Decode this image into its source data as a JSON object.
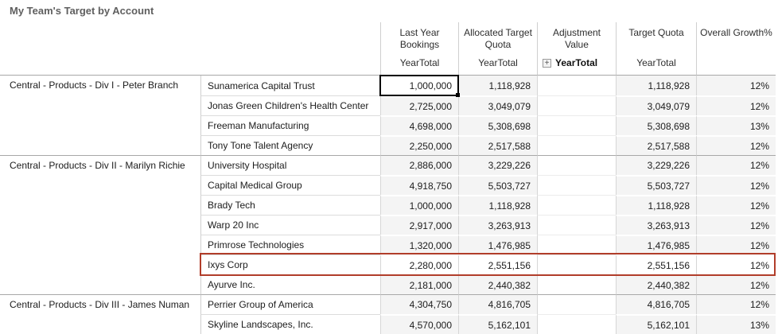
{
  "title": "My Team's Target by Account",
  "colors": {
    "highlight_border": "#b13d2a",
    "selection_border": "#000000",
    "cell_bg": "#f4f4f4",
    "grid_line": "#cfcfcf",
    "group_line": "#a8a8a8",
    "title_text": "#5f5f5f"
  },
  "icons": {
    "expand": "+"
  },
  "columns": [
    {
      "id": "last_year_bookings",
      "label": "Last Year Bookings",
      "sub": "YearTotal",
      "expandable": false
    },
    {
      "id": "allocated_target_quota",
      "label": "Allocated Target Quota",
      "sub": "YearTotal",
      "expandable": false
    },
    {
      "id": "adjustment_value",
      "label": "Adjustment Value",
      "sub": "YearTotal",
      "expandable": true
    },
    {
      "id": "target_quota",
      "label": "Target Quota",
      "sub": "YearTotal",
      "expandable": false
    },
    {
      "id": "overall_growth",
      "label": "Overall Growth%",
      "sub": "",
      "expandable": false
    }
  ],
  "groups": [
    {
      "label": "Central - Products - Div I - Peter Branch",
      "rows": [
        {
          "account": "Sunamerica Capital Trust",
          "last_year_bookings": "1,000,000",
          "allocated_target_quota": "1,118,928",
          "adjustment_value": "",
          "target_quota": "1,118,928",
          "overall_growth": "12%",
          "selected_column": "last_year_bookings"
        },
        {
          "account": "Jonas Green Children's Health Center",
          "last_year_bookings": "2,725,000",
          "allocated_target_quota": "3,049,079",
          "adjustment_value": "",
          "target_quota": "3,049,079",
          "overall_growth": "12%"
        },
        {
          "account": "Freeman Manufacturing",
          "last_year_bookings": "4,698,000",
          "allocated_target_quota": "5,308,698",
          "adjustment_value": "",
          "target_quota": "5,308,698",
          "overall_growth": "13%"
        },
        {
          "account": "Tony Tone Talent Agency",
          "last_year_bookings": "2,250,000",
          "allocated_target_quota": "2,517,588",
          "adjustment_value": "",
          "target_quota": "2,517,588",
          "overall_growth": "12%"
        }
      ]
    },
    {
      "label": "Central - Products - Div II - Marilyn Richie",
      "rows": [
        {
          "account": "University Hospital",
          "last_year_bookings": "2,886,000",
          "allocated_target_quota": "3,229,226",
          "adjustment_value": "",
          "target_quota": "3,229,226",
          "overall_growth": "12%"
        },
        {
          "account": "Capital Medical Group",
          "last_year_bookings": "4,918,750",
          "allocated_target_quota": "5,503,727",
          "adjustment_value": "",
          "target_quota": "5,503,727",
          "overall_growth": "12%"
        },
        {
          "account": "Brady Tech",
          "last_year_bookings": "1,000,000",
          "allocated_target_quota": "1,118,928",
          "adjustment_value": "",
          "target_quota": "1,118,928",
          "overall_growth": "12%"
        },
        {
          "account": "Warp 20 Inc",
          "last_year_bookings": "2,917,000",
          "allocated_target_quota": "3,263,913",
          "adjustment_value": "",
          "target_quota": "3,263,913",
          "overall_growth": "12%"
        },
        {
          "account": "Primrose Technologies",
          "last_year_bookings": "1,320,000",
          "allocated_target_quota": "1,476,985",
          "adjustment_value": "",
          "target_quota": "1,476,985",
          "overall_growth": "12%"
        },
        {
          "account": "Ixys Corp",
          "last_year_bookings": "2,280,000",
          "allocated_target_quota": "2,551,156",
          "adjustment_value": "",
          "target_quota": "2,551,156",
          "overall_growth": "12%",
          "highlighted": true
        },
        {
          "account": "Ayurve Inc.",
          "last_year_bookings": "2,181,000",
          "allocated_target_quota": "2,440,382",
          "adjustment_value": "",
          "target_quota": "2,440,382",
          "overall_growth": "12%"
        }
      ]
    },
    {
      "label": "Central - Products - Div III - James Numan",
      "rows": [
        {
          "account": "Perrier Group of America",
          "last_year_bookings": "4,304,750",
          "allocated_target_quota": "4,816,705",
          "adjustment_value": "",
          "target_quota": "4,816,705",
          "overall_growth": "12%"
        },
        {
          "account": "Skyline Landscapes, Inc.",
          "last_year_bookings": "4,570,000",
          "allocated_target_quota": "5,162,101",
          "adjustment_value": "",
          "target_quota": "5,162,101",
          "overall_growth": "13%"
        }
      ]
    }
  ]
}
